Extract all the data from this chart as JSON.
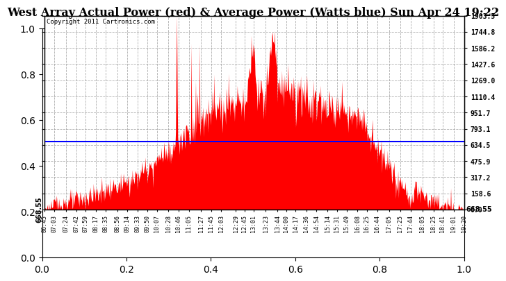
{
  "title": "West Array Actual Power (red) & Average Power (Watts blue) Sun Apr 24 19:22",
  "copyright": "Copyright 2011 Cartronics.com",
  "avg_power": 668.55,
  "ymax": 1903.5,
  "yticks": [
    0.0,
    158.6,
    317.2,
    475.9,
    634.5,
    793.1,
    951.7,
    1110.4,
    1269.0,
    1427.6,
    1586.2,
    1744.8,
    1903.5
  ],
  "ytick_labels": [
    "0.0",
    "158.6",
    "317.2",
    "475.9",
    "634.5",
    "793.1",
    "951.7",
    "1110.4",
    "1269.0",
    "1427.6",
    "1586.2",
    "1744.8",
    "1903.5"
  ],
  "background_color": "#ffffff",
  "fill_color": "#ff0000",
  "line_color": "#0000ff",
  "grid_color": "#999999",
  "title_fontsize": 11.5,
  "label_fontsize": 7,
  "time_labels": [
    "06:45",
    "07:03",
    "07:24",
    "07:42",
    "07:59",
    "08:17",
    "08:35",
    "08:56",
    "09:14",
    "09:33",
    "09:50",
    "10:07",
    "10:28",
    "10:46",
    "11:05",
    "11:27",
    "11:45",
    "12:03",
    "12:29",
    "12:45",
    "13:01",
    "13:23",
    "13:44",
    "14:00",
    "14:17",
    "14:36",
    "14:54",
    "15:14",
    "15:31",
    "15:49",
    "16:08",
    "16:25",
    "16:44",
    "17:05",
    "17:25",
    "17:44",
    "18:05",
    "18:25",
    "18:41",
    "19:01",
    "19:20"
  ]
}
